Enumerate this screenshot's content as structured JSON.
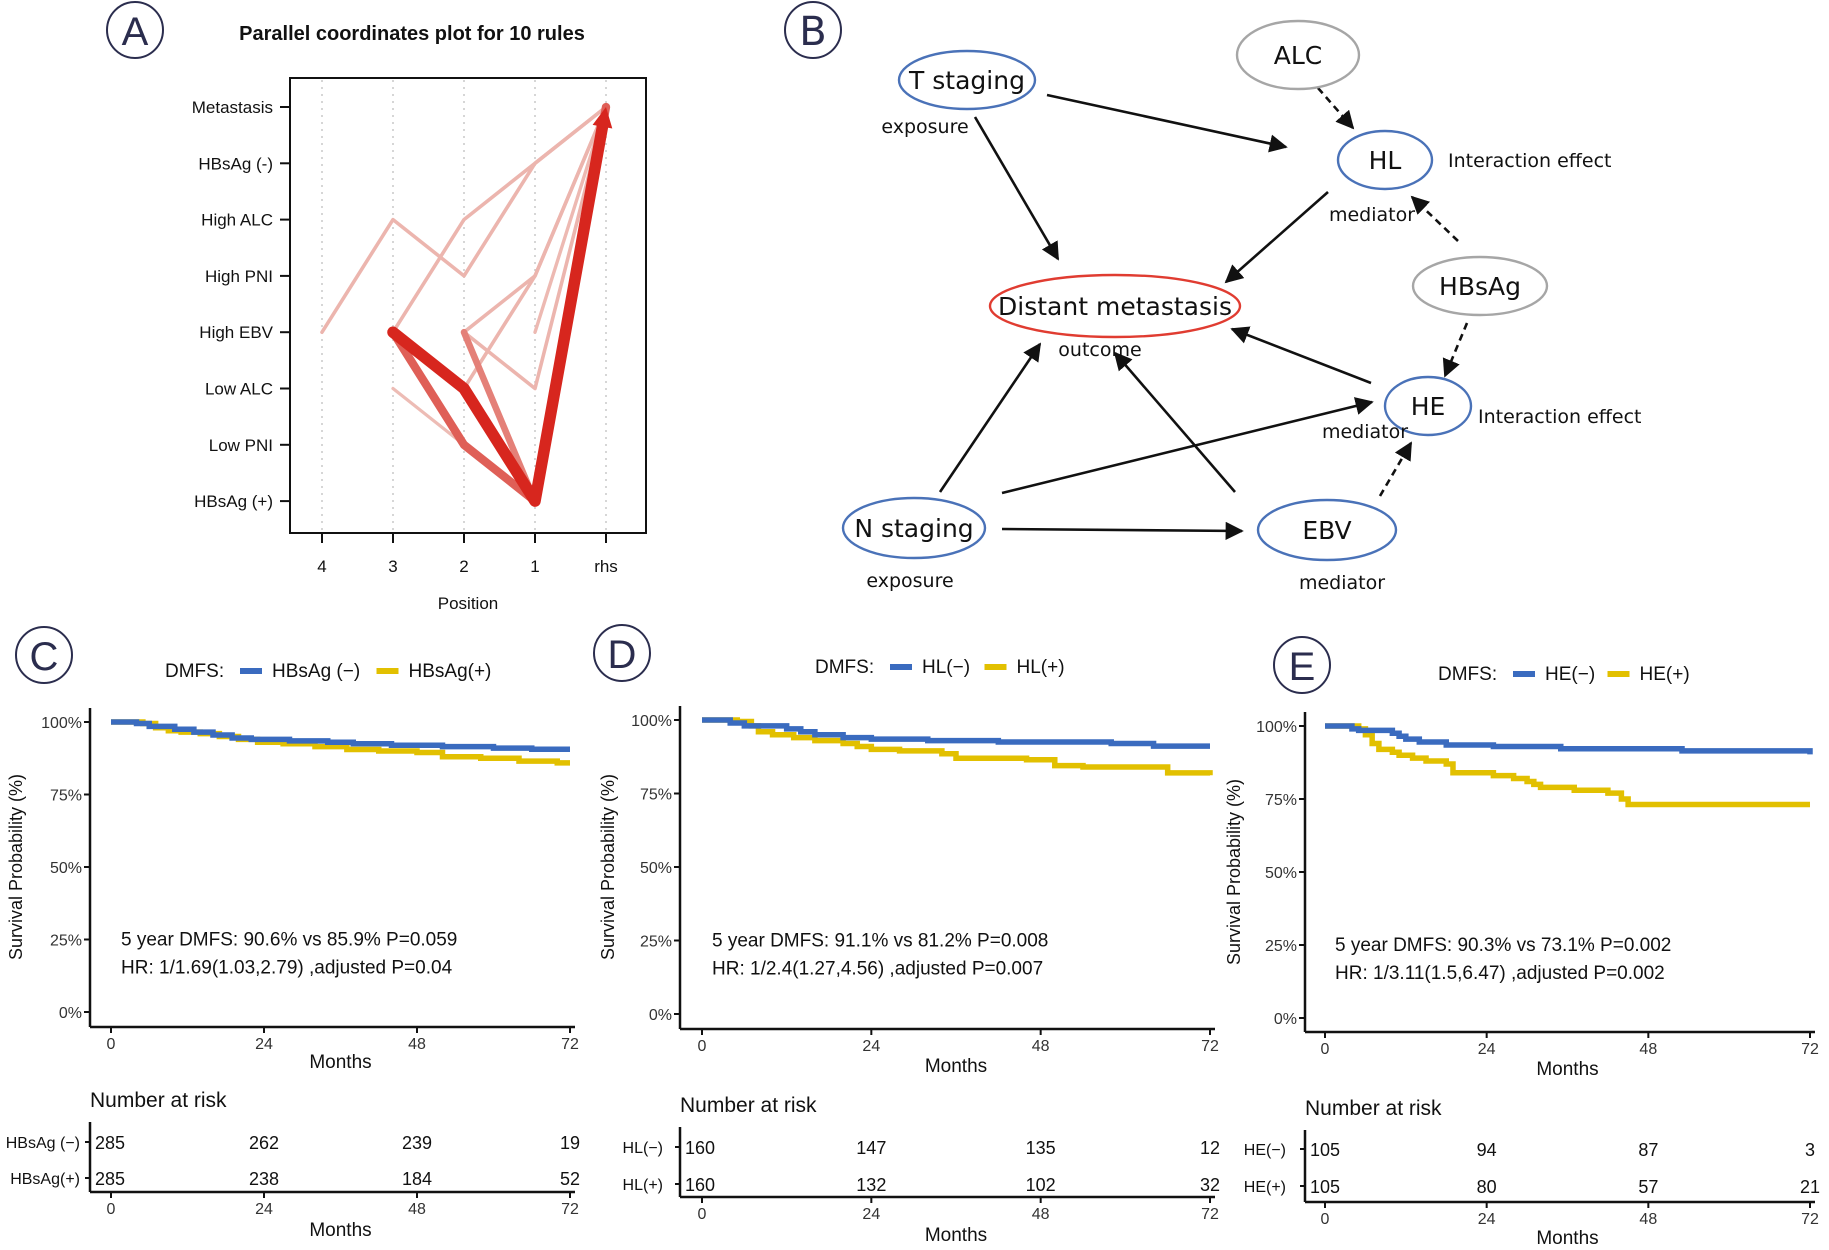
{
  "panels": {
    "A": {
      "letter": "A"
    },
    "B": {
      "letter": "B"
    },
    "C": {
      "letter": "C"
    },
    "D": {
      "letter": "D"
    },
    "E": {
      "letter": "E"
    }
  },
  "colors": {
    "panel_letter": "#2b2d4e",
    "rule_strong": "#d7261e",
    "rule_light": "#efc9c2",
    "blue_node": "#4a72b8",
    "grey_node": "#a6a6a6",
    "red_node": "#e03c31",
    "km_negative": "#3a6bbf",
    "km_positive": "#e2c000"
  },
  "chart_data": [
    {
      "id": "A",
      "type": "line",
      "subtype": "parallel-coordinates",
      "title": "Parallel coordinates plot for 10 rules",
      "xlabel": "Position",
      "ylabel": "",
      "x_categories": [
        "4",
        "3",
        "2",
        "1",
        "rhs"
      ],
      "y_categories": [
        "Metastasis",
        "HBsAg (-)",
        "High ALC",
        "High PNI",
        "High EBV",
        "Low ALC",
        "Low PNI",
        "HBsAg (+)"
      ],
      "grid": "vertical dotted",
      "rules": [
        {
          "path": [
            [
              "4",
              "High EBV"
            ],
            [
              "3",
              "High ALC"
            ],
            [
              "2",
              "High PNI"
            ],
            [
              "1",
              "HBsAg (-)"
            ],
            [
              "rhs",
              "Metastasis"
            ]
          ],
          "strength": 0.12
        },
        {
          "path": [
            [
              "3",
              "High EBV"
            ],
            [
              "2",
              "High ALC"
            ],
            [
              "1",
              "HBsAg (-)"
            ],
            [
              "rhs",
              "Metastasis"
            ]
          ],
          "strength": 0.12
        },
        {
          "path": [
            [
              "2",
              "Low ALC"
            ],
            [
              "1",
              "High PNI"
            ],
            [
              "rhs",
              "Metastasis"
            ]
          ],
          "strength": 0.12
        },
        {
          "path": [
            [
              "2",
              "High EBV"
            ],
            [
              "1",
              "High PNI"
            ],
            [
              "rhs",
              "Metastasis"
            ]
          ],
          "strength": 0.12
        },
        {
          "path": [
            [
              "2",
              "High EBV"
            ],
            [
              "1",
              "Low ALC"
            ],
            [
              "rhs",
              "Metastasis"
            ]
          ],
          "strength": 0.12
        },
        {
          "path": [
            [
              "1",
              "High EBV"
            ],
            [
              "rhs",
              "Metastasis"
            ]
          ],
          "strength": 0.1
        },
        {
          "path": [
            [
              "3",
              "Low ALC"
            ],
            [
              "2",
              "Low PNI"
            ],
            [
              "1",
              "HBsAg (+)"
            ],
            [
              "rhs",
              "Metastasis"
            ]
          ],
          "strength": 0.08
        },
        {
          "path": [
            [
              "2",
              "High EBV"
            ],
            [
              "1",
              "HBsAg (+)"
            ],
            [
              "rhs",
              "Metastasis"
            ]
          ],
          "strength": 0.45
        },
        {
          "path": [
            [
              "3",
              "High EBV"
            ],
            [
              "2",
              "Low PNI"
            ],
            [
              "1",
              "HBsAg (+)"
            ],
            [
              "rhs",
              "Metastasis"
            ]
          ],
          "strength": 0.65
        },
        {
          "path": [
            [
              "3",
              "High EBV"
            ],
            [
              "2",
              "Low ALC"
            ],
            [
              "1",
              "HBsAg (+)"
            ],
            [
              "rhs",
              "Metastasis"
            ]
          ],
          "strength": 1.0
        }
      ]
    },
    {
      "id": "C",
      "type": "line",
      "subtype": "kaplan-meier",
      "legend_title": "DMFS:",
      "legend_position": "top",
      "xlabel": "Months",
      "ylabel": "Survival Probability (%)",
      "x_ticks": [
        0,
        24,
        48,
        72
      ],
      "y_ticks": [
        "0%",
        "25%",
        "50%",
        "75%",
        "100%"
      ],
      "xlim": [
        0,
        72
      ],
      "ylim": [
        0,
        100
      ],
      "annotation": [
        "5 year DMFS: 90.6% vs 85.9% P=0.059",
        "HR: 1/1.69(1.03,2.79) ,adjusted P=0.04"
      ],
      "series": [
        {
          "name": "HBsAg (−)",
          "group": "negative",
          "steps": [
            [
              0,
              100
            ],
            [
              4,
              99.5
            ],
            [
              6,
              98.5
            ],
            [
              10,
              97.5
            ],
            [
              13,
              96.5
            ],
            [
              16,
              95.5
            ],
            [
              19,
              94.5
            ],
            [
              22,
              94
            ],
            [
              28,
              93.5
            ],
            [
              34,
              93
            ],
            [
              38,
              92.5
            ],
            [
              44,
              92
            ],
            [
              52,
              91.5
            ],
            [
              60,
              91
            ],
            [
              66,
              90.6
            ],
            [
              72,
              90.6
            ]
          ]
        },
        {
          "name": "HBsAg(+)",
          "group": "positive",
          "steps": [
            [
              0,
              100
            ],
            [
              5,
              99.5
            ],
            [
              7,
              98
            ],
            [
              9,
              97
            ],
            [
              11,
              96.5
            ],
            [
              14,
              96
            ],
            [
              17,
              95
            ],
            [
              20,
              94
            ],
            [
              23,
              93
            ],
            [
              27,
              92.5
            ],
            [
              32,
              91.5
            ],
            [
              37,
              90.5
            ],
            [
              42,
              90
            ],
            [
              48,
              89.5
            ],
            [
              52,
              88
            ],
            [
              58,
              87.5
            ],
            [
              64,
              86.5
            ],
            [
              70,
              85.9
            ],
            [
              72,
              85.9
            ]
          ]
        }
      ],
      "risk_table": {
        "title": "Number at risk",
        "xlabel": "Months",
        "times": [
          0,
          24,
          48,
          72
        ],
        "rows": [
          {
            "label": "HBsAg (−)",
            "values": [
              285,
              262,
              239,
              19
            ]
          },
          {
            "label": "HBsAg(+)",
            "values": [
              285,
              238,
              184,
              52
            ]
          }
        ]
      }
    },
    {
      "id": "D",
      "type": "line",
      "subtype": "kaplan-meier",
      "legend_title": "DMFS:",
      "legend_position": "top",
      "xlabel": "Months",
      "ylabel": "Survival Probability (%)",
      "x_ticks": [
        0,
        24,
        48,
        72
      ],
      "y_ticks": [
        "0%",
        "25%",
        "50%",
        "75%",
        "100%"
      ],
      "xlim": [
        0,
        72
      ],
      "ylim": [
        0,
        100
      ],
      "annotation": [
        "5 year DMFS: 91.1% vs 81.2% P=0.008",
        "HR: 1/2.4(1.27,4.56) ,adjusted P=0.007"
      ],
      "series": [
        {
          "name": "HL(−)",
          "group": "negative",
          "steps": [
            [
              0,
              100
            ],
            [
              4,
              99
            ],
            [
              6,
              98
            ],
            [
              12,
              97
            ],
            [
              14,
              96
            ],
            [
              16,
              95
            ],
            [
              20,
              94
            ],
            [
              24,
              93.5
            ],
            [
              32,
              93
            ],
            [
              42,
              92.5
            ],
            [
              58,
              92
            ],
            [
              64,
              91.1
            ],
            [
              72,
              91.1
            ]
          ]
        },
        {
          "name": "HL(+)",
          "group": "positive",
          "steps": [
            [
              0,
              100
            ],
            [
              5,
              99.5
            ],
            [
              7,
              98
            ],
            [
              8,
              96
            ],
            [
              10,
              95
            ],
            [
              13,
              94
            ],
            [
              16,
              93
            ],
            [
              20,
              92
            ],
            [
              22,
              91
            ],
            [
              24,
              90
            ],
            [
              28,
              89.5
            ],
            [
              34,
              88.5
            ],
            [
              36,
              87
            ],
            [
              46,
              86.5
            ],
            [
              50,
              84.5
            ],
            [
              54,
              84
            ],
            [
              66,
              82
            ],
            [
              72,
              81.2
            ]
          ]
        }
      ],
      "risk_table": {
        "title": "Number at risk",
        "xlabel": "Months",
        "times": [
          0,
          24,
          48,
          72
        ],
        "rows": [
          {
            "label": "HL(−)",
            "values": [
              160,
              147,
              135,
              12
            ]
          },
          {
            "label": "HL(+)",
            "values": [
              160,
              132,
              102,
              32
            ]
          }
        ]
      }
    },
    {
      "id": "E",
      "type": "line",
      "subtype": "kaplan-meier",
      "legend_title": "DMFS:",
      "legend_position": "top",
      "xlabel": "Months",
      "ylabel": "Survival Probability (%)",
      "x_ticks": [
        0,
        24,
        48,
        72
      ],
      "y_ticks": [
        "0%",
        "25%",
        "50%",
        "75%",
        "100%"
      ],
      "xlim": [
        0,
        72
      ],
      "ylim": [
        0,
        100
      ],
      "annotation": [
        "5 year DMFS: 90.3% vs 73.1% P=0.002",
        "HR: 1/3.11(1.5,6.47) ,adjusted P=0.002"
      ],
      "series": [
        {
          "name": "HE(−)",
          "group": "negative",
          "steps": [
            [
              0,
              100
            ],
            [
              4,
              99
            ],
            [
              5,
              98.5
            ],
            [
              10,
              97.5
            ],
            [
              11,
              96.5
            ],
            [
              12,
              95.5
            ],
            [
              14,
              94.5
            ],
            [
              18,
              93.5
            ],
            [
              25,
              93
            ],
            [
              35,
              92.2
            ],
            [
              53,
              91.5
            ],
            [
              72,
              90.3
            ]
          ]
        },
        {
          "name": "HE(+)",
          "group": "positive",
          "steps": [
            [
              0,
              100
            ],
            [
              5,
              99
            ],
            [
              6,
              97
            ],
            [
              7,
              94
            ],
            [
              8,
              92
            ],
            [
              10,
              91
            ],
            [
              11,
              90
            ],
            [
              13,
              89
            ],
            [
              15,
              88
            ],
            [
              18,
              87
            ],
            [
              19,
              84
            ],
            [
              25,
              83
            ],
            [
              28,
              82
            ],
            [
              30,
              81
            ],
            [
              31,
              80
            ],
            [
              32,
              79
            ],
            [
              37,
              78
            ],
            [
              42,
              77
            ],
            [
              44,
              75
            ],
            [
              45,
              73.1
            ],
            [
              72,
              73.1
            ]
          ]
        }
      ],
      "risk_table": {
        "title": "Number at risk",
        "xlabel": "Months",
        "times": [
          0,
          24,
          48,
          72
        ],
        "rows": [
          {
            "label": "HE(−)",
            "values": [
              105,
              94,
              87,
              3
            ]
          },
          {
            "label": "HE(+)",
            "values": [
              105,
              80,
              57,
              21
            ]
          }
        ]
      }
    }
  ],
  "diagram": {
    "nodes": [
      {
        "id": "t_staging",
        "label": "T staging",
        "role": "exposure",
        "style": "blue"
      },
      {
        "id": "alc",
        "label": "ALC",
        "role": "",
        "style": "grey"
      },
      {
        "id": "hl",
        "label": "HL",
        "role": "mediator",
        "style": "blue",
        "note": "Interaction effect"
      },
      {
        "id": "hbsag",
        "label": "HBsAg",
        "role": "",
        "style": "grey"
      },
      {
        "id": "dm",
        "label": "Distant metastasis",
        "role": "outcome",
        "style": "red"
      },
      {
        "id": "he",
        "label": "HE",
        "role": "mediator",
        "style": "blue",
        "note": "Interaction effect"
      },
      {
        "id": "n_staging",
        "label": "N staging",
        "role": "exposure",
        "style": "blue"
      },
      {
        "id": "ebv",
        "label": "EBV",
        "role": "mediator",
        "style": "blue"
      }
    ],
    "edges": [
      {
        "from": "t_staging",
        "to": "hl",
        "dashed": false
      },
      {
        "from": "t_staging",
        "to": "dm",
        "dashed": false
      },
      {
        "from": "alc",
        "to": "hl",
        "dashed": true
      },
      {
        "from": "hbsag",
        "to": "hl",
        "dashed": true
      },
      {
        "from": "hl",
        "to": "dm",
        "dashed": false
      },
      {
        "from": "hbsag",
        "to": "he",
        "dashed": true
      },
      {
        "from": "he",
        "to": "dm",
        "dashed": false
      },
      {
        "from": "n_staging",
        "to": "dm",
        "dashed": false
      },
      {
        "from": "n_staging",
        "to": "he",
        "dashed": false
      },
      {
        "from": "n_staging",
        "to": "ebv",
        "dashed": false
      },
      {
        "from": "ebv",
        "to": "dm",
        "dashed": false
      },
      {
        "from": "ebv",
        "to": "he",
        "dashed": true
      }
    ]
  }
}
